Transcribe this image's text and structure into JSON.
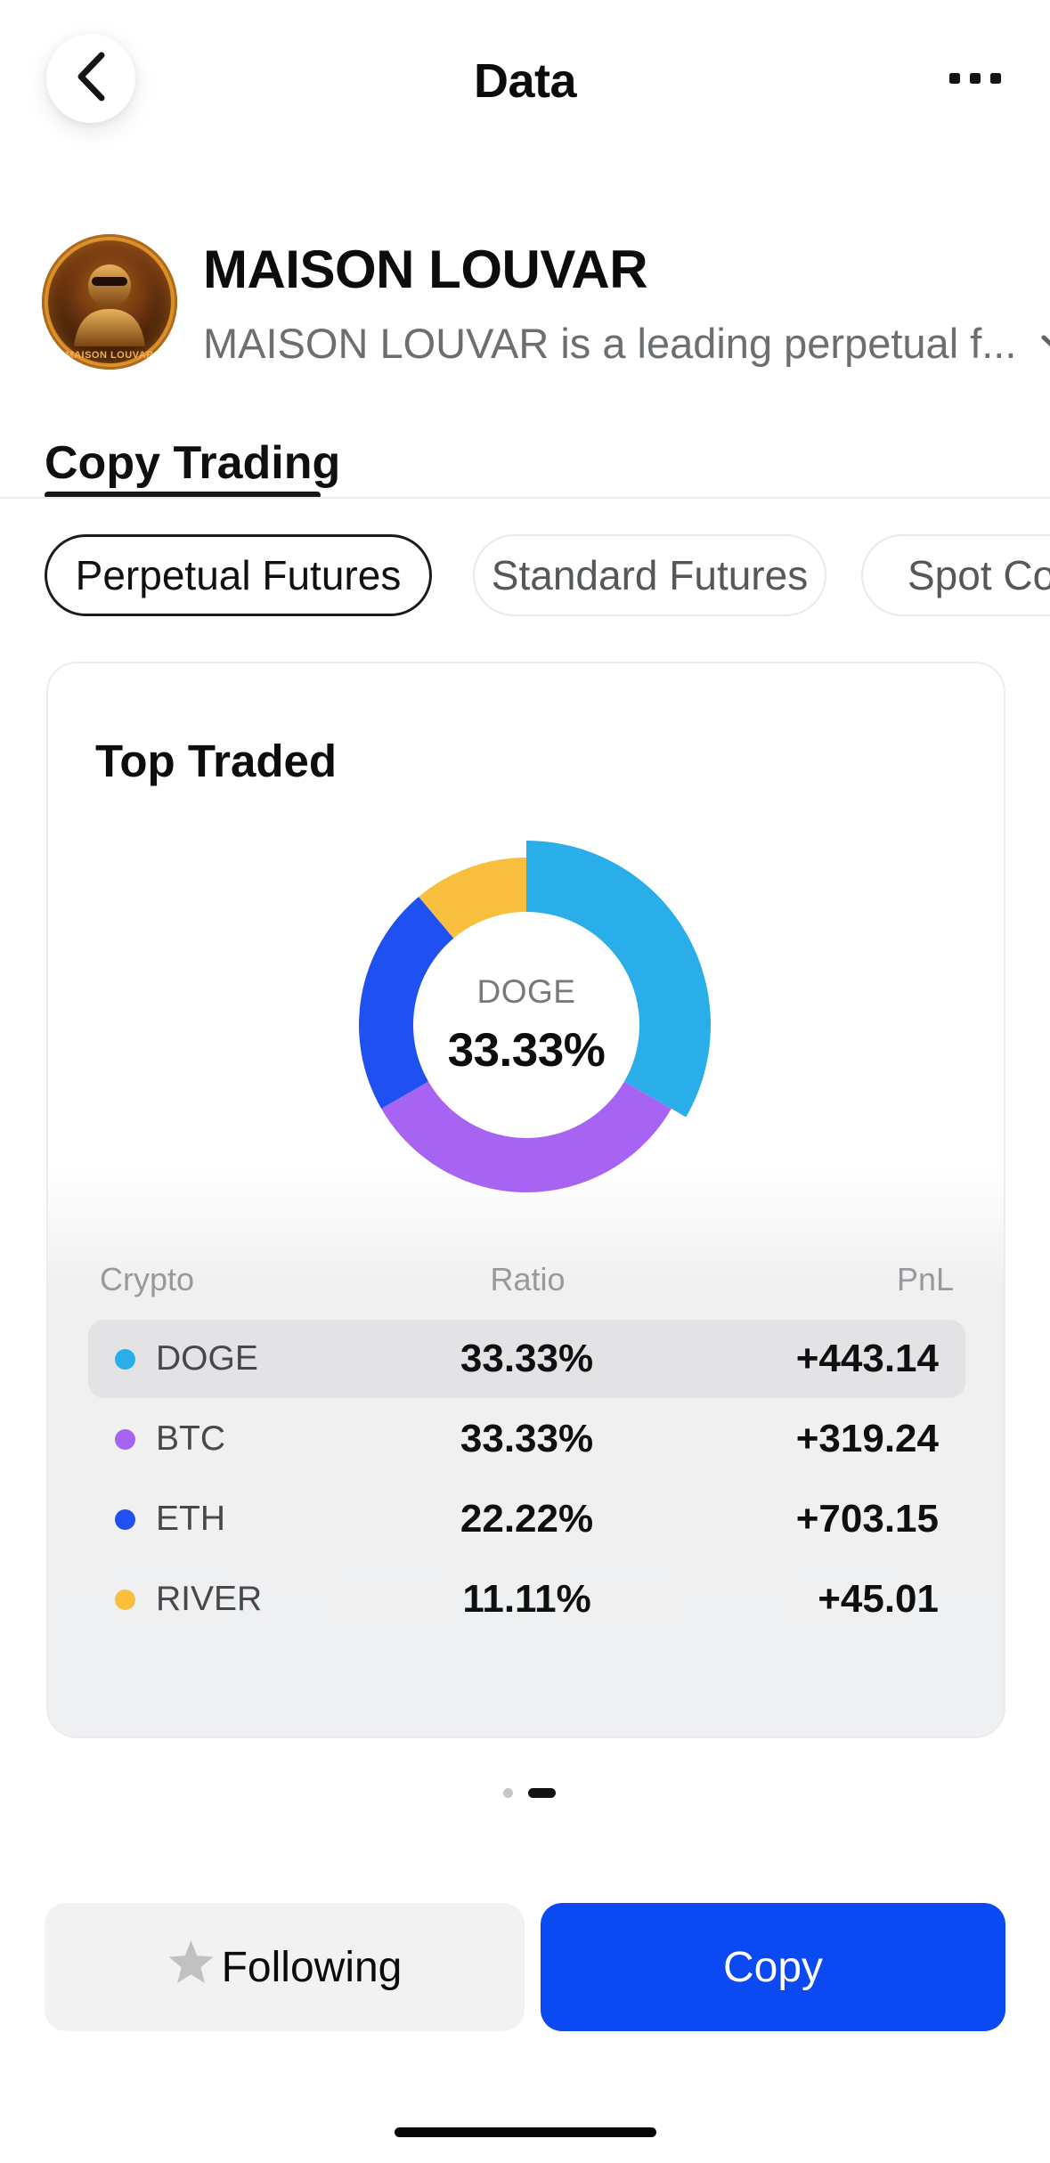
{
  "nav": {
    "title": "Data"
  },
  "profile": {
    "name": "MAISON LOUVAR",
    "description": "MAISON LOUVAR is a leading perpetual f...",
    "avatar_caption": "MAISON LOUVAR"
  },
  "tabs": {
    "copy_trading": "Copy Trading"
  },
  "filters": {
    "perpetual": "Perpetual Futures",
    "standard": "Standard Futures",
    "spot": "Spot Cop"
  },
  "chart_data": {
    "type": "donut",
    "title": "Top Traded",
    "center_label": {
      "symbol": "DOGE",
      "value": "33.33%"
    },
    "start_angle_deg": 0,
    "direction": "clockwise",
    "inner_radius": 127,
    "outer_radius": 188,
    "selected_outer_radius": 207,
    "legend_position": "table-below",
    "segments": [
      {
        "label": "DOGE",
        "ratio": 33.33,
        "ratio_text": "33.33%",
        "pnl": "+443.14",
        "color": "#2aaee9",
        "selected": true
      },
      {
        "label": "BTC",
        "ratio": 33.33,
        "ratio_text": "33.33%",
        "pnl": "+319.24",
        "color": "#a763f1",
        "selected": false
      },
      {
        "label": "ETH",
        "ratio": 22.22,
        "ratio_text": "22.22%",
        "pnl": "+703.15",
        "color": "#1f50f2",
        "selected": false
      },
      {
        "label": "RIVER",
        "ratio": 11.11,
        "ratio_text": "11.11%",
        "pnl": "+45.01",
        "color": "#f7bf3d",
        "selected": false
      }
    ]
  },
  "table": {
    "headers": {
      "crypto": "Crypto",
      "ratio": "Ratio",
      "pnl": "PnL"
    }
  },
  "actions": {
    "following": "Following",
    "copy": "Copy"
  },
  "colors": {
    "accent_blue": "#0b49f2",
    "row_highlight": "#e3e3e5",
    "pager_inactive": "#c6c6c8",
    "pager_active": "#101113"
  }
}
